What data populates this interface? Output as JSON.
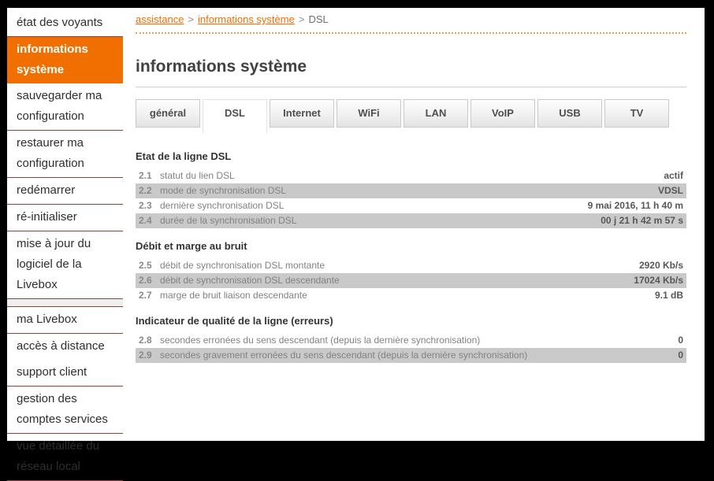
{
  "colors": {
    "accent_orange": "#f16e00",
    "sidebar_separator": "#8a443c",
    "row_gray": "#c9c9c9"
  },
  "breadcrumb": {
    "separator": ">",
    "items": [
      {
        "name": "assistance",
        "label": "assistance",
        "link": true
      },
      {
        "name": "informations-systeme",
        "label": "informations système",
        "link": true
      },
      {
        "name": "dsl",
        "label": "DSL",
        "link": false
      }
    ]
  },
  "page": {
    "title": "informations système"
  },
  "sidebar": {
    "items": [
      {
        "name": "etat-des-voyants",
        "label": "état des voyants",
        "selected": false,
        "separator_after": true
      },
      {
        "name": "informations-systeme",
        "label": "informations système",
        "selected": true,
        "separator_after": false
      },
      {
        "name": "sauvegarder-ma-configuration",
        "label": "sauvegarder ma configuration",
        "selected": false,
        "separator_after": true
      },
      {
        "name": "restaurer-ma-configuration",
        "label": "restaurer ma configuration",
        "selected": false,
        "separator_after": true
      },
      {
        "name": "redemarrer",
        "label": "redémarrer",
        "selected": false,
        "separator_after": true
      },
      {
        "name": "re-initialiser",
        "label": "ré-initialiser",
        "selected": false,
        "separator_after": true
      },
      {
        "name": "mise-a-jour-du-logiciel",
        "label": "mise à jour du logiciel de la Livebox",
        "selected": false,
        "separator_after": true
      },
      {
        "name": "spacer",
        "label": "",
        "spacer": true,
        "separator_after": true
      },
      {
        "name": "ma-livebox",
        "label": "ma Livebox",
        "selected": false,
        "separator_after": true
      },
      {
        "name": "acces-a-distance",
        "label": "accès à distance",
        "selected": false,
        "separator_after": false
      },
      {
        "name": "support-client",
        "label": "support client",
        "selected": false,
        "separator_after": true
      },
      {
        "name": "gestion-des-comptes-services",
        "label": "gestion des comptes services",
        "selected": false,
        "separator_after": true
      },
      {
        "name": "vue-detaillee-du-reseau-local",
        "label": "vue détaillée du réseau local",
        "selected": false,
        "separator_after": true
      }
    ]
  },
  "tabs": [
    {
      "name": "general",
      "label": "général",
      "active": false
    },
    {
      "name": "dsl",
      "label": "DSL",
      "active": true
    },
    {
      "name": "internet",
      "label": "Internet",
      "active": false
    },
    {
      "name": "wifi",
      "label": "WiFi",
      "active": false
    },
    {
      "name": "lan",
      "label": "LAN",
      "active": false
    },
    {
      "name": "voip",
      "label": "VoIP",
      "active": false
    },
    {
      "name": "usb",
      "label": "USB",
      "active": false
    },
    {
      "name": "tv",
      "label": "TV",
      "active": false
    }
  ],
  "sections": [
    {
      "title": "Etat de la ligne DSL",
      "rows": [
        {
          "num": "2.1",
          "label": "statut du lien DSL",
          "value": "actif"
        },
        {
          "num": "2.2",
          "label": "mode de synchronisation DSL",
          "value": "VDSL"
        },
        {
          "num": "2.3",
          "label": "dernière synchronisation DSL",
          "value": "9 mai 2016, 11 h 40 m"
        },
        {
          "num": "2.4",
          "label": "durée de la synchronisation DSL",
          "value": "00 j 21 h 42 m 57 s"
        }
      ]
    },
    {
      "title": "Débit et marge au bruit",
      "rows": [
        {
          "num": "2.5",
          "label": "débit de synchronisation DSL montante",
          "value": "2920 Kb/s"
        },
        {
          "num": "2.6",
          "label": "débit de synchronisation DSL descendante",
          "value": "17024 Kb/s"
        },
        {
          "num": "2.7",
          "label": "marge de bruit liaison descendante",
          "value": "9.1 dB"
        }
      ]
    },
    {
      "title": "Indicateur de qualité de la ligne (erreurs)",
      "rows": [
        {
          "num": "2.8",
          "label": "secondes erronées du sens descendant (depuis la dernière synchronisation)",
          "value": "0"
        },
        {
          "num": "2.9",
          "label": "secondes gravement erronées du sens descendant (depuis la dernière synchronisation)",
          "value": "0"
        }
      ]
    }
  ]
}
